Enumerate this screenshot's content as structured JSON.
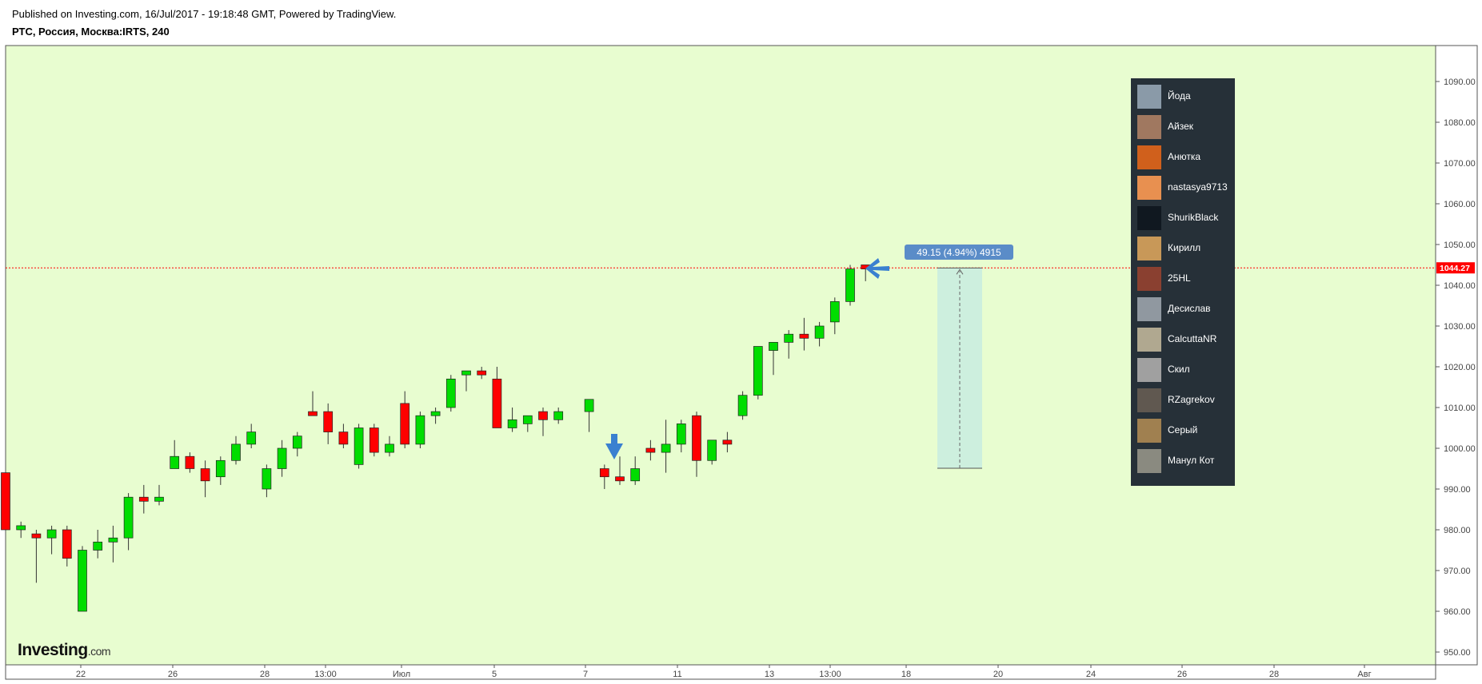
{
  "header": {
    "published": "Published on Investing.com, 16/Jul/2017 - 19:18:48 GMT, Powered by TradingView.",
    "symbol": "РТС, Россия, Москва:IRTS, 240"
  },
  "logo": {
    "text": "Investing",
    "suffix": ".com"
  },
  "chart_data": {
    "type": "candlestick",
    "price_axis": {
      "ticks": [
        "1090.00",
        "1080.00",
        "1070.00",
        "1060.00",
        "1050.00",
        "1040.00",
        "1030.00",
        "1020.00",
        "1010.00",
        "1000.00",
        "990.00",
        "980.00",
        "970.00",
        "960.00",
        "950.00"
      ],
      "range": [
        947,
        1097
      ]
    },
    "time_axis": {
      "labels": [
        "22",
        "26",
        "28",
        "13:00",
        "Июл",
        "5",
        "7",
        "11",
        "13",
        "13:00",
        "18",
        "20",
        "24",
        "26",
        "28",
        "Авг"
      ]
    },
    "last_price": {
      "label": "1044.27",
      "value": 1044.27,
      "color": "#ff0000"
    },
    "colors": {
      "up": "#00dd00",
      "down": "#ff0000",
      "background": "#e8fdd0"
    },
    "candles": [
      {
        "o": 994,
        "h": 994,
        "l": 980,
        "c": 980
      },
      {
        "o": 980,
        "h": 982,
        "l": 978,
        "c": 981
      },
      {
        "o": 979,
        "h": 980,
        "l": 967,
        "c": 978
      },
      {
        "o": 978,
        "h": 981,
        "l": 974,
        "c": 980
      },
      {
        "o": 980,
        "h": 981,
        "l": 971,
        "c": 973
      },
      {
        "o": 960,
        "h": 976,
        "l": 960,
        "c": 975
      },
      {
        "o": 975,
        "h": 980,
        "l": 973,
        "c": 977
      },
      {
        "o": 977,
        "h": 981,
        "l": 972,
        "c": 978
      },
      {
        "o": 978,
        "h": 989,
        "l": 975,
        "c": 988
      },
      {
        "o": 988,
        "h": 991,
        "l": 984,
        "c": 987
      },
      {
        "o": 987,
        "h": 991,
        "l": 986,
        "c": 988
      },
      {
        "o": 995,
        "h": 1002,
        "l": 995,
        "c": 998
      },
      {
        "o": 998,
        "h": 999,
        "l": 994,
        "c": 995
      },
      {
        "o": 995,
        "h": 997,
        "l": 988,
        "c": 992
      },
      {
        "o": 993,
        "h": 998,
        "l": 991,
        "c": 997
      },
      {
        "o": 997,
        "h": 1003,
        "l": 996,
        "c": 1001
      },
      {
        "o": 1001,
        "h": 1006,
        "l": 1000,
        "c": 1004
      },
      {
        "o": 990,
        "h": 996,
        "l": 988,
        "c": 995
      },
      {
        "o": 995,
        "h": 1002,
        "l": 993,
        "c": 1000
      },
      {
        "o": 1000,
        "h": 1004,
        "l": 998,
        "c": 1003
      },
      {
        "o": 1009,
        "h": 1014,
        "l": 1008,
        "c": 1008
      },
      {
        "o": 1009,
        "h": 1011,
        "l": 1001,
        "c": 1004
      },
      {
        "o": 1004,
        "h": 1006,
        "l": 1000,
        "c": 1001
      },
      {
        "o": 996,
        "h": 1006,
        "l": 995,
        "c": 1005
      },
      {
        "o": 1005,
        "h": 1006,
        "l": 998,
        "c": 999
      },
      {
        "o": 999,
        "h": 1003,
        "l": 998,
        "c": 1001
      },
      {
        "o": 1011,
        "h": 1014,
        "l": 1000,
        "c": 1001
      },
      {
        "o": 1001,
        "h": 1009,
        "l": 1000,
        "c": 1008
      },
      {
        "o": 1008,
        "h": 1010,
        "l": 1006,
        "c": 1009
      },
      {
        "o": 1010,
        "h": 1018,
        "l": 1009,
        "c": 1017
      },
      {
        "o": 1018,
        "h": 1019,
        "l": 1014,
        "c": 1019
      },
      {
        "o": 1019,
        "h": 1020,
        "l": 1017,
        "c": 1018
      },
      {
        "o": 1017,
        "h": 1020,
        "l": 1005,
        "c": 1005
      },
      {
        "o": 1005,
        "h": 1010,
        "l": 1004,
        "c": 1007
      },
      {
        "o": 1006,
        "h": 1008,
        "l": 1004,
        "c": 1008
      },
      {
        "o": 1009,
        "h": 1010,
        "l": 1003,
        "c": 1007
      },
      {
        "o": 1007,
        "h": 1010,
        "l": 1006,
        "c": 1009
      },
      {
        "o": 1009,
        "h": 1012,
        "l": 1004,
        "c": 1012
      },
      {
        "o": 995,
        "h": 996,
        "l": 990,
        "c": 993
      },
      {
        "o": 993,
        "h": 998,
        "l": 991,
        "c": 992
      },
      {
        "o": 992,
        "h": 998,
        "l": 991,
        "c": 995
      },
      {
        "o": 1000,
        "h": 1002,
        "l": 997,
        "c": 999
      },
      {
        "o": 999,
        "h": 1007,
        "l": 994,
        "c": 1001
      },
      {
        "o": 1001,
        "h": 1007,
        "l": 999,
        "c": 1006
      },
      {
        "o": 1008,
        "h": 1009,
        "l": 993,
        "c": 997
      },
      {
        "o": 997,
        "h": 1002,
        "l": 996,
        "c": 1002
      },
      {
        "o": 1002,
        "h": 1004,
        "l": 999,
        "c": 1001
      },
      {
        "o": 1008,
        "h": 1014,
        "l": 1007,
        "c": 1013
      },
      {
        "o": 1013,
        "h": 1025,
        "l": 1012,
        "c": 1025
      },
      {
        "o": 1024,
        "h": 1026,
        "l": 1018,
        "c": 1026
      },
      {
        "o": 1026,
        "h": 1029,
        "l": 1022,
        "c": 1028
      },
      {
        "o": 1028,
        "h": 1032,
        "l": 1024,
        "c": 1027
      },
      {
        "o": 1027,
        "h": 1031,
        "l": 1025,
        "c": 1030
      },
      {
        "o": 1031,
        "h": 1037,
        "l": 1028,
        "c": 1036
      },
      {
        "o": 1036,
        "h": 1045,
        "l": 1035,
        "c": 1044
      },
      {
        "o": 1045,
        "h": 1045,
        "l": 1041,
        "c": 1044
      }
    ],
    "measure": {
      "label": "49.15 (4.94%) 4915",
      "from": 995.1,
      "to": 1044.25
    }
  },
  "users": {
    "items": [
      {
        "name": "Йода",
        "avatar": "yoda-avatar",
        "color": "#8a9aa8"
      },
      {
        "name": "Айзек",
        "avatar": "isaac-avatar",
        "color": "#a07860"
      },
      {
        "name": "Анютка",
        "avatar": "fox-avatar",
        "color": "#d0601c"
      },
      {
        "name": "nastasya9713",
        "avatar": "cartoon-avatar",
        "color": "#e89050"
      },
      {
        "name": "ShurikBlack",
        "avatar": "dark-avatar",
        "color": "#101820"
      },
      {
        "name": "Кирилл",
        "avatar": "cat-avatar",
        "color": "#c89858"
      },
      {
        "name": "25HL",
        "avatar": "car-avatar",
        "color": "#8a4030"
      },
      {
        "name": "Десислав",
        "avatar": "city-avatar",
        "color": "#9098a0"
      },
      {
        "name": "CalcuttaNR",
        "avatar": "ruins-avatar",
        "color": "#b0a890"
      },
      {
        "name": "Скил",
        "avatar": "dog-avatar",
        "color": "#a0a0a0"
      },
      {
        "name": "RZagrekov",
        "avatar": "portrait-avatar",
        "color": "#605850"
      },
      {
        "name": "Серый",
        "avatar": "wolf-avatar",
        "color": "#a08050"
      },
      {
        "name": "Манул Кот",
        "avatar": "manul-avatar",
        "color": "#8a8a80"
      }
    ]
  }
}
